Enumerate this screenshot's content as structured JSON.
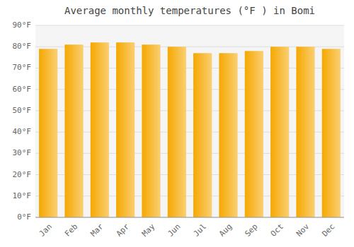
{
  "chart_data": {
    "type": "bar",
    "title": "Average monthly temperatures (°F ) in Bomi",
    "categories": [
      "Jan",
      "Feb",
      "Mar",
      "Apr",
      "May",
      "Jun",
      "Jul",
      "Aug",
      "Sep",
      "Oct",
      "Nov",
      "Dec"
    ],
    "values": [
      79,
      81,
      82,
      82,
      81,
      80,
      77,
      77,
      78,
      80,
      80,
      79
    ],
    "color": "#F5A800",
    "ylim": [
      0,
      90
    ],
    "yticks": [
      {
        "value": 0,
        "label": "0°F"
      },
      {
        "value": 10,
        "label": "10°F"
      },
      {
        "value": 20,
        "label": "20°F"
      },
      {
        "value": 30,
        "label": "30°F"
      },
      {
        "value": 40,
        "label": "40°F"
      },
      {
        "value": 50,
        "label": "50°F"
      },
      {
        "value": 60,
        "label": "60°F"
      },
      {
        "value": 70,
        "label": "70°F"
      },
      {
        "value": 80,
        "label": "80°F"
      },
      {
        "value": 90,
        "label": "90°F"
      }
    ],
    "grid": true
  }
}
